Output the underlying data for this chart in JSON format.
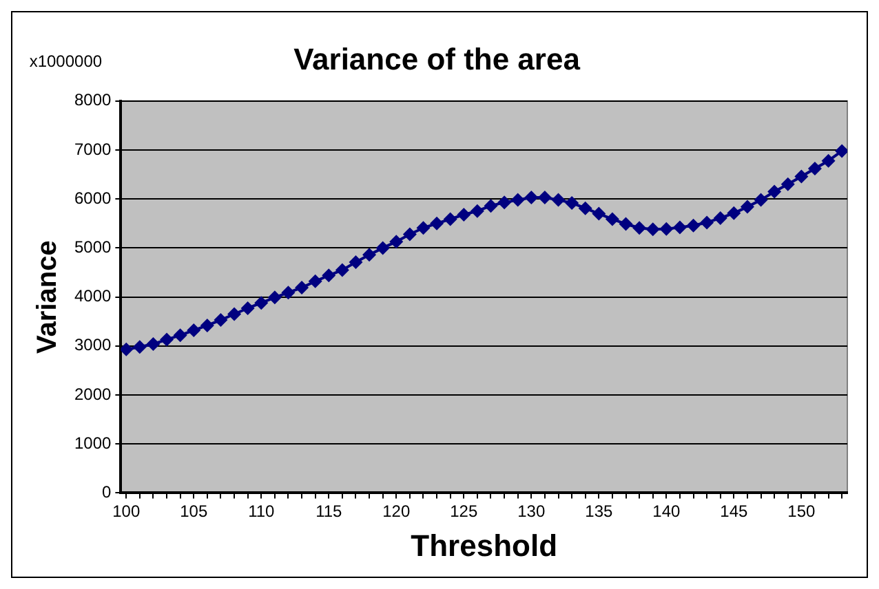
{
  "chart_data": {
    "type": "line",
    "title": "Variance of the area",
    "xlabel": "Threshold",
    "ylabel": "Variance",
    "annotations": [
      "x1000000"
    ],
    "x": [
      100,
      101,
      102,
      103,
      104,
      105,
      106,
      107,
      108,
      109,
      110,
      111,
      112,
      113,
      114,
      115,
      116,
      117,
      118,
      119,
      120,
      121,
      122,
      123,
      124,
      125,
      126,
      127,
      128,
      129,
      130,
      131,
      132,
      133,
      134,
      135,
      136,
      137,
      138,
      139,
      140,
      141,
      142,
      143,
      144,
      145,
      146,
      147,
      148,
      149,
      150,
      151,
      152,
      153
    ],
    "series": [
      {
        "color": "#000080",
        "values": [
          2930,
          2980,
          3040,
          3130,
          3220,
          3320,
          3420,
          3530,
          3650,
          3770,
          3880,
          3990,
          4090,
          4190,
          4320,
          4440,
          4550,
          4710,
          4860,
          5000,
          5130,
          5280,
          5410,
          5500,
          5590,
          5680,
          5755,
          5860,
          5930,
          5980,
          6030,
          6030,
          5980,
          5920,
          5810,
          5700,
          5590,
          5490,
          5410,
          5380,
          5390,
          5420,
          5460,
          5520,
          5610,
          5710,
          5840,
          5980,
          6150,
          6300,
          6460,
          6620,
          6780,
          6980
        ]
      }
    ],
    "xlim": [
      99.6,
      153.4
    ],
    "xticks": [
      100,
      {
        "value": 101,
        "label": null
      },
      {
        "value": 102,
        "label": null
      },
      {
        "value": 103,
        "label": null
      },
      {
        "value": 104,
        "label": null
      },
      105,
      {
        "value": 106,
        "label": null
      },
      {
        "value": 107,
        "label": null
      },
      {
        "value": 108,
        "label": null
      },
      {
        "value": 109,
        "label": null
      },
      110,
      {
        "value": 111,
        "label": null
      },
      {
        "value": 112,
        "label": null
      },
      {
        "value": 113,
        "label": null
      },
      {
        "value": 114,
        "label": null
      },
      115,
      {
        "value": 116,
        "label": null
      },
      {
        "value": 117,
        "label": null
      },
      {
        "value": 118,
        "label": null
      },
      {
        "value": 119,
        "label": null
      },
      120,
      {
        "value": 121,
        "label": null
      },
      {
        "value": 122,
        "label": null
      },
      {
        "value": 123,
        "label": null
      },
      {
        "value": 124,
        "label": null
      },
      125,
      {
        "value": 126,
        "label": null
      },
      {
        "value": 127,
        "label": null
      },
      {
        "value": 128,
        "label": null
      },
      {
        "value": 129,
        "label": null
      },
      130,
      {
        "value": 131,
        "label": null
      },
      {
        "value": 132,
        "label": null
      },
      {
        "value": 133,
        "label": null
      },
      {
        "value": 134,
        "label": null
      },
      135,
      {
        "value": 136,
        "label": null
      },
      {
        "value": 137,
        "label": null
      },
      {
        "value": 138,
        "label": null
      },
      {
        "value": 139,
        "label": null
      },
      140,
      {
        "value": 141,
        "label": null
      },
      {
        "value": 142,
        "label": null
      },
      {
        "value": 143,
        "label": null
      },
      {
        "value": 144,
        "label": null
      },
      145,
      {
        "value": 146,
        "label": null
      },
      {
        "value": 147,
        "label": null
      },
      {
        "value": 148,
        "label": null
      },
      {
        "value": 149,
        "label": null
      },
      150,
      {
        "value": 151,
        "label": null
      },
      {
        "value": 152,
        "label": null
      },
      {
        "value": 153,
        "label": null
      }
    ],
    "ylim": [
      0,
      8000
    ],
    "yticks": [
      0,
      1000,
      2000,
      3000,
      4000,
      5000,
      6000,
      7000,
      8000
    ],
    "grid": "y",
    "legend": false,
    "marker": "diamond",
    "line_style": "solid"
  }
}
